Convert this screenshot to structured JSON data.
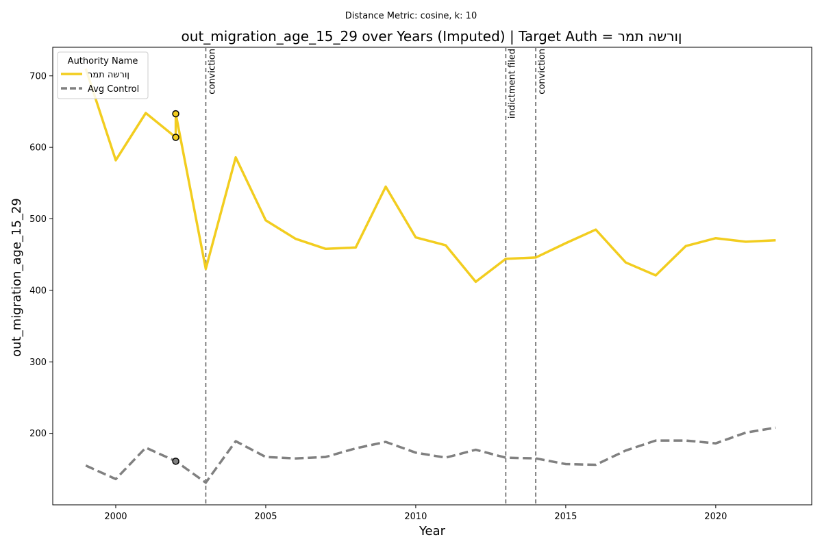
{
  "chart_data": {
    "type": "line",
    "suptitle": "Distance Metric: cosine, k: 10",
    "title": "out_migration_age_15_29 over Years (Imputed) | Target Auth = ןורשה תמר",
    "xlabel": "Year",
    "ylabel": "out_migration_age_15_29",
    "xlim": [
      1997.9,
      2023.2
    ],
    "ylim": [
      100,
      740
    ],
    "xticks": [
      2000,
      2005,
      2010,
      2015,
      2020
    ],
    "yticks": [
      200,
      300,
      400,
      500,
      600,
      700
    ],
    "grid": false,
    "legend": {
      "title": "Authority Name",
      "position": "top-left"
    },
    "series": [
      {
        "name": "ןורשה תמר",
        "color": "#f2cd1f",
        "style": "solid",
        "points": [
          [
            1999,
            710
          ],
          [
            2000,
            582
          ],
          [
            2001,
            648
          ],
          [
            2002,
            614
          ],
          [
            2002,
            647
          ],
          [
            2003,
            430
          ],
          [
            2004,
            586
          ],
          [
            2005,
            498
          ],
          [
            2006,
            472
          ],
          [
            2007,
            458
          ],
          [
            2008,
            460
          ],
          [
            2009,
            545
          ],
          [
            2010,
            474
          ],
          [
            2011,
            463
          ],
          [
            2012,
            412
          ],
          [
            2013,
            444
          ],
          [
            2014,
            446
          ],
          [
            2015,
            466
          ],
          [
            2016,
            485
          ],
          [
            2017,
            439
          ],
          [
            2018,
            421
          ],
          [
            2019,
            462
          ],
          [
            2020,
            473
          ],
          [
            2021,
            468
          ],
          [
            2022,
            470
          ]
        ]
      },
      {
        "name": "Avg Control",
        "color": "#808080",
        "style": "dashed",
        "points": [
          [
            1999,
            155
          ],
          [
            2000,
            136
          ],
          [
            2001,
            180
          ],
          [
            2002,
            161
          ],
          [
            2003,
            131
          ],
          [
            2004,
            189
          ],
          [
            2005,
            167
          ],
          [
            2006,
            165
          ],
          [
            2007,
            167
          ],
          [
            2008,
            179
          ],
          [
            2009,
            188
          ],
          [
            2010,
            173
          ],
          [
            2011,
            166
          ],
          [
            2012,
            177
          ],
          [
            2013,
            166
          ],
          [
            2014,
            165
          ],
          [
            2015,
            157
          ],
          [
            2016,
            156
          ],
          [
            2017,
            176
          ],
          [
            2018,
            190
          ],
          [
            2019,
            190
          ],
          [
            2020,
            186
          ],
          [
            2021,
            201
          ],
          [
            2022,
            208
          ]
        ]
      }
    ],
    "markers": [
      {
        "x": 2002,
        "y": 647,
        "fill": "#f2cd1f"
      },
      {
        "x": 2002,
        "y": 614,
        "fill": "#f2cd1f"
      },
      {
        "x": 2002,
        "y": 161,
        "fill": "#808080"
      }
    ],
    "events": [
      {
        "x": 2003,
        "label": "conviction"
      },
      {
        "x": 2013,
        "label": "indictment filed"
      },
      {
        "x": 2014,
        "label": "conviction"
      }
    ]
  }
}
